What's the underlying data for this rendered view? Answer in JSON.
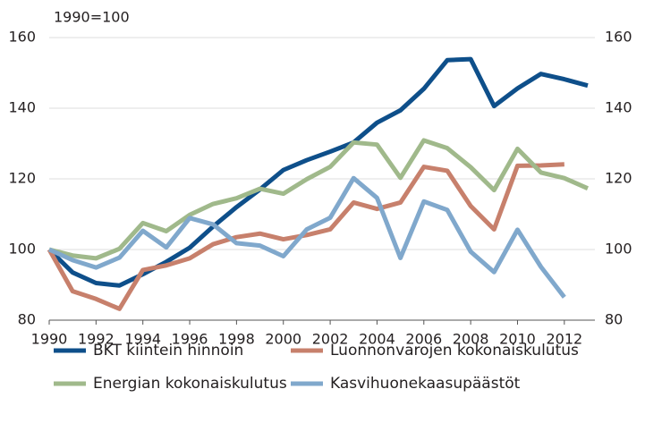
{
  "chart_data": {
    "type": "line",
    "subtitle": "1990=100",
    "x": [
      1990,
      1991,
      1992,
      1993,
      1994,
      1995,
      1996,
      1997,
      1998,
      1999,
      2000,
      2001,
      2002,
      2003,
      2004,
      2005,
      2006,
      2007,
      2008,
      2009,
      2010,
      2011,
      2012,
      2013
    ],
    "series": [
      {
        "name": "BKT kiintein hinnoin",
        "color": "#0e4f8a",
        "values": [
          100,
          93.5,
          90.5,
          89.8,
          93,
          96.5,
          100.5,
          106.5,
          112,
          117,
          122.5,
          125.3,
          127.7,
          130.3,
          135.9,
          139.4,
          145.5,
          153.6,
          153.9,
          140.6,
          145.6,
          149.7,
          148.2,
          146.4
        ]
      },
      {
        "name": "Luonnonvarojen kokonaiskulutus",
        "color": "#c7806c",
        "values": [
          100,
          88.2,
          86,
          83.2,
          94.2,
          95.5,
          97.5,
          101.5,
          103.5,
          104.5,
          102.9,
          104.1,
          105.7,
          113.3,
          111.5,
          113.3,
          123.4,
          122.3,
          112.3,
          105.7,
          123.7,
          123.8,
          124.1,
          null
        ]
      },
      {
        "name": "Energian kokonaiskulutus",
        "color": "#a0b98b",
        "values": [
          100,
          98.3,
          97.5,
          100.2,
          107.5,
          105.2,
          109.8,
          112.9,
          114.5,
          117.2,
          115.8,
          119.9,
          123.4,
          130.3,
          129.7,
          120.3,
          130.9,
          128.7,
          123.3,
          116.8,
          128.5,
          121.8,
          120.2,
          117.3
        ]
      },
      {
        "name": "Kasvihuonekaasupäästöt",
        "color": "#80a8cc",
        "values": [
          100,
          97,
          94.9,
          97.7,
          105.3,
          100.6,
          108.9,
          107.1,
          101.8,
          101.1,
          98.1,
          105.7,
          109,
          120.2,
          114.6,
          97.6,
          113.6,
          111.2,
          99.4,
          93.6,
          105.6,
          95.1,
          86.5,
          null
        ]
      }
    ],
    "xlim": [
      1990,
      2013
    ],
    "xticks": [
      1990,
      1992,
      1994,
      1996,
      1998,
      2000,
      2002,
      2004,
      2006,
      2008,
      2010,
      2012
    ],
    "ylim": [
      80,
      160
    ],
    "yticks": [
      80,
      100,
      120,
      140,
      160
    ],
    "y2lim": [
      80,
      160
    ],
    "y2ticks": [
      80,
      100,
      120,
      140,
      160
    ],
    "grid": true,
    "legend": "bottom"
  }
}
